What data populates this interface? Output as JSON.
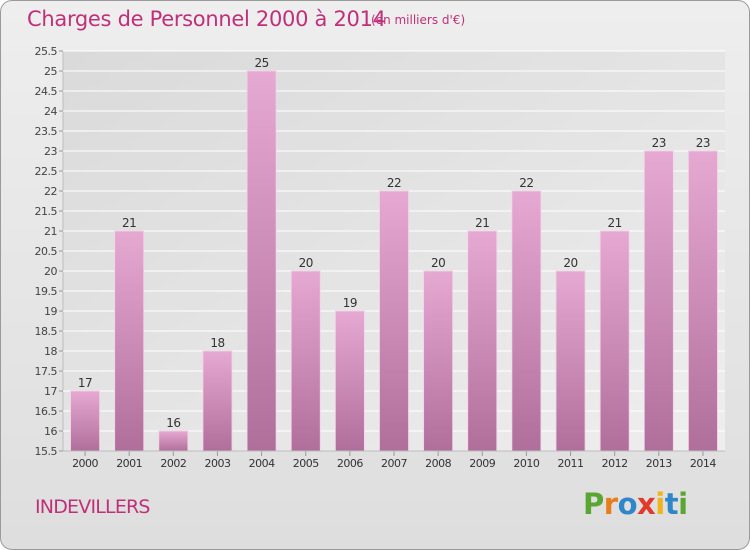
{
  "header": {
    "title": "Charges de Personnel 2000 à 2014",
    "subtitle": "(en milliers d'€)"
  },
  "footer": {
    "commune": "INDEVILLERS",
    "logo": "Proxiti"
  },
  "colors": {
    "title": "#c0307a",
    "bar_top": "#e6a9d2",
    "bar_bottom": "#b06f9b",
    "grid": "#ffffff",
    "background": "#e6e6e6",
    "logo_letters": [
      "#5aa632",
      "#e87d1e",
      "#2f86c8",
      "#e23a2a",
      "#f0b31a",
      "#2f86c8",
      "#5aa632"
    ]
  },
  "chart_data": {
    "type": "bar",
    "title": "Charges de Personnel 2000 à 2014",
    "subtitle": "(en milliers d'€)",
    "categories": [
      "2000",
      "2001",
      "2002",
      "2003",
      "2004",
      "2005",
      "2006",
      "2007",
      "2008",
      "2009",
      "2010",
      "2011",
      "2012",
      "2013",
      "2014"
    ],
    "values": [
      17,
      21,
      16,
      18,
      25,
      20,
      19,
      22,
      20,
      21,
      22,
      20,
      21,
      23,
      23
    ],
    "data_labels": [
      "17",
      "21",
      "16",
      "18",
      "25",
      "20",
      "19",
      "22",
      "20",
      "21",
      "22",
      "20",
      "21",
      "23",
      "23"
    ],
    "yticks": [
      "15.5",
      "16",
      "16.5",
      "17",
      "17.5",
      "18",
      "18.5",
      "19",
      "19.5",
      "20",
      "20.5",
      "21",
      "21.5",
      "22",
      "22.5",
      "23",
      "23.5",
      "24",
      "24.5",
      "25",
      "25.5"
    ],
    "ylim": [
      15.5,
      25.5
    ],
    "grid": true,
    "legend": "none"
  }
}
